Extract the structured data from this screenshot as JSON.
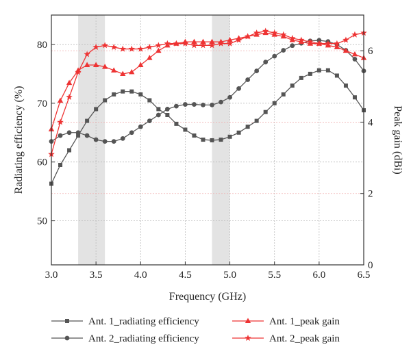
{
  "chart_data": {
    "type": "line",
    "xlabel": "Frequency (GHz)",
    "ylabel_left": "Radiating efficiency (%)",
    "ylabel_right": "Peak gain (dBi)",
    "xlim": [
      3.0,
      6.5
    ],
    "ylim_left": [
      42.5,
      85
    ],
    "ylim_right": [
      0,
      7
    ],
    "x_ticks": [
      "3.0",
      "3.5",
      "4.0",
      "4.5",
      "5.0",
      "5.5",
      "6.0",
      "6.5"
    ],
    "x_tick_values": [
      3.0,
      3.5,
      4.0,
      4.5,
      5.0,
      5.5,
      6.0,
      6.5
    ],
    "y_left_ticks": [
      "50",
      "60",
      "70",
      "80"
    ],
    "y_left_tick_values": [
      50,
      60,
      70,
      80
    ],
    "y_right_ticks": [
      "0",
      "2",
      "4",
      "6"
    ],
    "y_right_tick_values": [
      0,
      2,
      4,
      6
    ],
    "grid": true,
    "shaded_bands": [
      [
        3.3,
        3.6
      ],
      [
        4.8,
        5.0
      ]
    ],
    "legend_position": "bottom",
    "series": [
      {
        "name": "Ant. 1_radiating efficiency",
        "axis": "left",
        "color": "#555555",
        "marker": "square",
        "x": [
          3.0,
          3.1,
          3.2,
          3.3,
          3.4,
          3.5,
          3.6,
          3.7,
          3.8,
          3.9,
          4.0,
          4.1,
          4.2,
          4.3,
          4.4,
          4.5,
          4.6,
          4.7,
          4.8,
          4.9,
          5.0,
          5.1,
          5.2,
          5.3,
          5.4,
          5.5,
          5.6,
          5.7,
          5.8,
          5.9,
          6.0,
          6.1,
          6.2,
          6.3,
          6.4,
          6.5
        ],
        "y": [
          56.3,
          59.5,
          62.0,
          64.5,
          67.0,
          69.0,
          70.5,
          71.5,
          72.0,
          72.0,
          71.5,
          70.5,
          69.0,
          68.0,
          66.5,
          65.5,
          64.5,
          63.8,
          63.7,
          63.8,
          64.3,
          65.0,
          66.0,
          67.0,
          68.5,
          70.0,
          71.5,
          73.0,
          74.3,
          75.0,
          75.6,
          75.6,
          74.7,
          73.0,
          71.0,
          68.8
        ]
      },
      {
        "name": "Ant. 2_radiating efficiency",
        "axis": "left",
        "color": "#555555",
        "marker": "circle",
        "x": [
          3.0,
          3.1,
          3.2,
          3.3,
          3.4,
          3.5,
          3.6,
          3.7,
          3.8,
          3.9,
          4.0,
          4.1,
          4.2,
          4.3,
          4.4,
          4.5,
          4.6,
          4.7,
          4.8,
          4.9,
          5.0,
          5.1,
          5.2,
          5.3,
          5.4,
          5.5,
          5.6,
          5.7,
          5.8,
          5.9,
          6.0,
          6.1,
          6.2,
          6.3,
          6.4,
          6.5
        ],
        "y": [
          63.5,
          64.5,
          65.0,
          65.0,
          64.5,
          63.8,
          63.5,
          63.5,
          64.0,
          65.0,
          66.0,
          67.0,
          68.0,
          69.0,
          69.5,
          69.8,
          69.8,
          69.7,
          69.7,
          70.2,
          71.0,
          72.5,
          74.0,
          75.5,
          77.0,
          78.0,
          79.0,
          79.8,
          80.2,
          80.6,
          80.7,
          80.5,
          80.0,
          79.0,
          77.5,
          75.5
        ]
      },
      {
        "name": "Ant. 1_peak gain",
        "axis": "right",
        "color": "#ee3333",
        "marker": "triangle",
        "x": [
          3.0,
          3.1,
          3.2,
          3.3,
          3.4,
          3.5,
          3.6,
          3.7,
          3.8,
          3.9,
          4.0,
          4.1,
          4.2,
          4.3,
          4.4,
          4.5,
          4.6,
          4.7,
          4.8,
          4.9,
          5.0,
          5.1,
          5.2,
          5.3,
          5.4,
          5.5,
          5.6,
          5.7,
          5.8,
          5.9,
          6.0,
          6.1,
          6.2,
          6.3,
          6.4,
          6.5
        ],
        "y": [
          3.8,
          4.6,
          5.1,
          5.45,
          5.6,
          5.6,
          5.55,
          5.45,
          5.35,
          5.4,
          5.6,
          5.8,
          6.0,
          6.15,
          6.2,
          6.25,
          6.25,
          6.25,
          6.25,
          6.25,
          6.3,
          6.35,
          6.4,
          6.45,
          6.5,
          6.45,
          6.4,
          6.3,
          6.25,
          6.2,
          6.2,
          6.15,
          6.1,
          6.0,
          5.9,
          5.8
        ]
      },
      {
        "name": "Ant. 2_peak gain",
        "axis": "right",
        "color": "#ee3333",
        "marker": "star",
        "x": [
          3.0,
          3.1,
          3.2,
          3.3,
          3.4,
          3.5,
          3.6,
          3.7,
          3.8,
          3.9,
          4.0,
          4.1,
          4.2,
          4.3,
          4.4,
          4.5,
          4.6,
          4.7,
          4.8,
          4.9,
          5.0,
          5.1,
          5.2,
          5.3,
          5.4,
          5.5,
          5.6,
          5.7,
          5.8,
          5.9,
          6.0,
          6.1,
          6.2,
          6.3,
          6.4,
          6.5
        ],
        "y": [
          3.1,
          4.0,
          4.7,
          5.4,
          5.9,
          6.1,
          6.15,
          6.1,
          6.05,
          6.05,
          6.05,
          6.1,
          6.15,
          6.2,
          6.2,
          6.2,
          6.15,
          6.15,
          6.15,
          6.2,
          6.2,
          6.3,
          6.4,
          6.5,
          6.55,
          6.5,
          6.45,
          6.35,
          6.3,
          6.25,
          6.2,
          6.2,
          6.2,
          6.3,
          6.45,
          6.5
        ]
      }
    ]
  }
}
